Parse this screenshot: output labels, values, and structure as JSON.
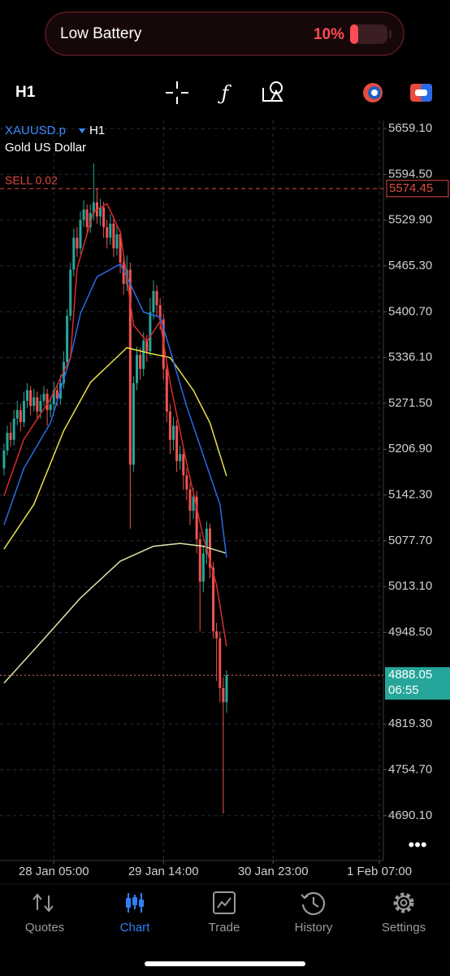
{
  "status": {
    "title": "Low Battery",
    "battery": "10%"
  },
  "toolbar": {
    "timeframe": "H1"
  },
  "chart_data": {
    "type": "candlestick",
    "symbol": "XAUUSD.p",
    "timeframe": "H1",
    "description": "Gold US Dollar",
    "open": [
      5180,
      5205,
      5230,
      5220,
      5250,
      5262,
      5245,
      5275,
      5290,
      5268,
      5280,
      5260,
      5275,
      5285,
      5262,
      5270,
      5290,
      5278,
      5300,
      5330,
      5395,
      5460,
      5505,
      5490,
      5530,
      5545,
      5520,
      5540,
      5555,
      5535,
      5548,
      5520,
      5505,
      5525,
      5490,
      5510,
      5470,
      5440,
      5460,
      5185,
      5300,
      5340,
      5320,
      5360,
      5345,
      5400,
      5430,
      5410,
      5390,
      5320,
      5260,
      5220,
      5240,
      5190,
      5200,
      5170,
      5150,
      5120,
      5140,
      5080,
      5020,
      5060,
      5095,
      5040,
      4950,
      4940,
      4870,
      4850
    ],
    "high": [
      5215,
      5240,
      5245,
      5262,
      5275,
      5270,
      5288,
      5300,
      5296,
      5292,
      5288,
      5284,
      5296,
      5292,
      5280,
      5302,
      5298,
      5312,
      5345,
      5405,
      5470,
      5518,
      5520,
      5542,
      5558,
      5552,
      5552,
      5610,
      5575,
      5560,
      5556,
      5530,
      5538,
      5532,
      5522,
      5515,
      5478,
      5480,
      5470,
      5310,
      5352,
      5350,
      5372,
      5368,
      5420,
      5445,
      5438,
      5420,
      5398,
      5330,
      5270,
      5252,
      5248,
      5212,
      5208,
      5180,
      5160,
      5152,
      5148,
      5090,
      5072,
      5105,
      5102,
      5048,
      4962,
      4950,
      4885,
      4895
    ],
    "low": [
      5170,
      5198,
      5210,
      5212,
      5240,
      5232,
      5238,
      5265,
      5255,
      5260,
      5248,
      5250,
      5268,
      5240,
      5252,
      5262,
      5268,
      5270,
      5292,
      5322,
      5388,
      5450,
      5478,
      5482,
      5520,
      5508,
      5512,
      5530,
      5525,
      5522,
      5505,
      5490,
      5495,
      5478,
      5480,
      5455,
      5425,
      5430,
      5095,
      5175,
      5290,
      5305,
      5310,
      5330,
      5338,
      5390,
      5395,
      5375,
      5305,
      5245,
      5200,
      5205,
      5175,
      5178,
      5150,
      5135,
      5100,
      5108,
      5060,
      4950,
      5005,
      5045,
      5025,
      4940,
      4880,
      4850,
      4693,
      4835
    ],
    "close": [
      5205,
      5230,
      5220,
      5250,
      5262,
      5245,
      5275,
      5290,
      5268,
      5280,
      5260,
      5275,
      5285,
      5262,
      5270,
      5290,
      5278,
      5300,
      5330,
      5395,
      5460,
      5505,
      5490,
      5530,
      5545,
      5520,
      5540,
      5555,
      5535,
      5548,
      5520,
      5505,
      5525,
      5490,
      5510,
      5470,
      5440,
      5460,
      5185,
      5300,
      5340,
      5320,
      5360,
      5345,
      5400,
      5430,
      5410,
      5390,
      5320,
      5260,
      5220,
      5240,
      5190,
      5200,
      5170,
      5150,
      5120,
      5140,
      5080,
      5020,
      5060,
      5095,
      5040,
      4950,
      4940,
      4870,
      4850,
      4888.05
    ],
    "up_color": "#26a69a",
    "down_color": "#ef5350",
    "moving_averages": [
      {
        "color": "#d6e9a8",
        "x": [
          0,
          11,
          23,
          35,
          45,
          53,
          60,
          67
        ],
        "values": [
          4877,
          4934,
          4997,
          5049,
          5070,
          5074,
          5070,
          5060
        ]
      },
      {
        "color": "#e8e24a",
        "x": [
          0,
          9,
          18,
          26,
          37,
          44,
          50,
          57,
          62,
          67
        ],
        "values": [
          5066,
          5129,
          5233,
          5301,
          5350,
          5342,
          5336,
          5290,
          5244,
          5169
        ]
      },
      {
        "color": "#2a6ae8",
        "x": [
          0,
          6,
          14,
          20,
          23,
          28,
          35,
          38,
          42,
          47,
          50,
          55,
          60,
          65,
          67
        ],
        "values": [
          5100,
          5180,
          5244,
          5336,
          5398,
          5450,
          5468,
          5440,
          5400,
          5393,
          5347,
          5267,
          5198,
          5129,
          5054
        ]
      },
      {
        "color": "#d82c2c",
        "x": [
          0,
          6,
          14,
          20,
          22,
          27,
          31,
          35,
          39,
          43,
          47,
          50,
          55,
          60,
          64,
          67
        ],
        "values": [
          5141,
          5221,
          5278,
          5336,
          5462,
          5542,
          5553,
          5513,
          5382,
          5359,
          5387,
          5301,
          5187,
          5083,
          5015,
          4929
        ]
      }
    ],
    "xlim": [
      -1.2,
      114.2
    ],
    "xticks": [
      {
        "value": 15,
        "label": "28 Jan 05:00"
      },
      {
        "value": 48,
        "label": "29 Jan 14:00"
      },
      {
        "value": 81,
        "label": "30 Jan 23:00"
      },
      {
        "value": 113,
        "label": "1 Feb 07:00"
      }
    ],
    "ylim": [
      4626.8,
      5670.6
    ],
    "yticks": [
      {
        "value": 5659.1,
        "label": "5659.10"
      },
      {
        "value": 5594.5,
        "label": "5594.50"
      },
      {
        "value": 5529.9,
        "label": "5529.90"
      },
      {
        "value": 5465.3,
        "label": "5465.30"
      },
      {
        "value": 5400.7,
        "label": "5400.70"
      },
      {
        "value": 5336.1,
        "label": "5336.10"
      },
      {
        "value": 5271.5,
        "label": "5271.50"
      },
      {
        "value": 5206.9,
        "label": "5206.90"
      },
      {
        "value": 5142.3,
        "label": "5142.30"
      },
      {
        "value": 5077.7,
        "label": "5077.70"
      },
      {
        "value": 5013.1,
        "label": "5013.10"
      },
      {
        "value": 4948.5,
        "label": "4948.50"
      },
      {
        "value": 4819.3,
        "label": "4819.30"
      },
      {
        "value": 4754.7,
        "label": "4754.70"
      },
      {
        "value": 4690.1,
        "label": "4690.10"
      }
    ],
    "grid": true,
    "sell_order": {
      "label": "SELL 0.02",
      "price": 5574.45,
      "color": "#e0483f"
    },
    "bid": {
      "price": 4888.05,
      "countdown": "06:55",
      "color": "#26a69a"
    }
  },
  "tabs": [
    "Quotes",
    "Chart",
    "Trade",
    "History",
    "Settings"
  ],
  "active_tab": 1
}
